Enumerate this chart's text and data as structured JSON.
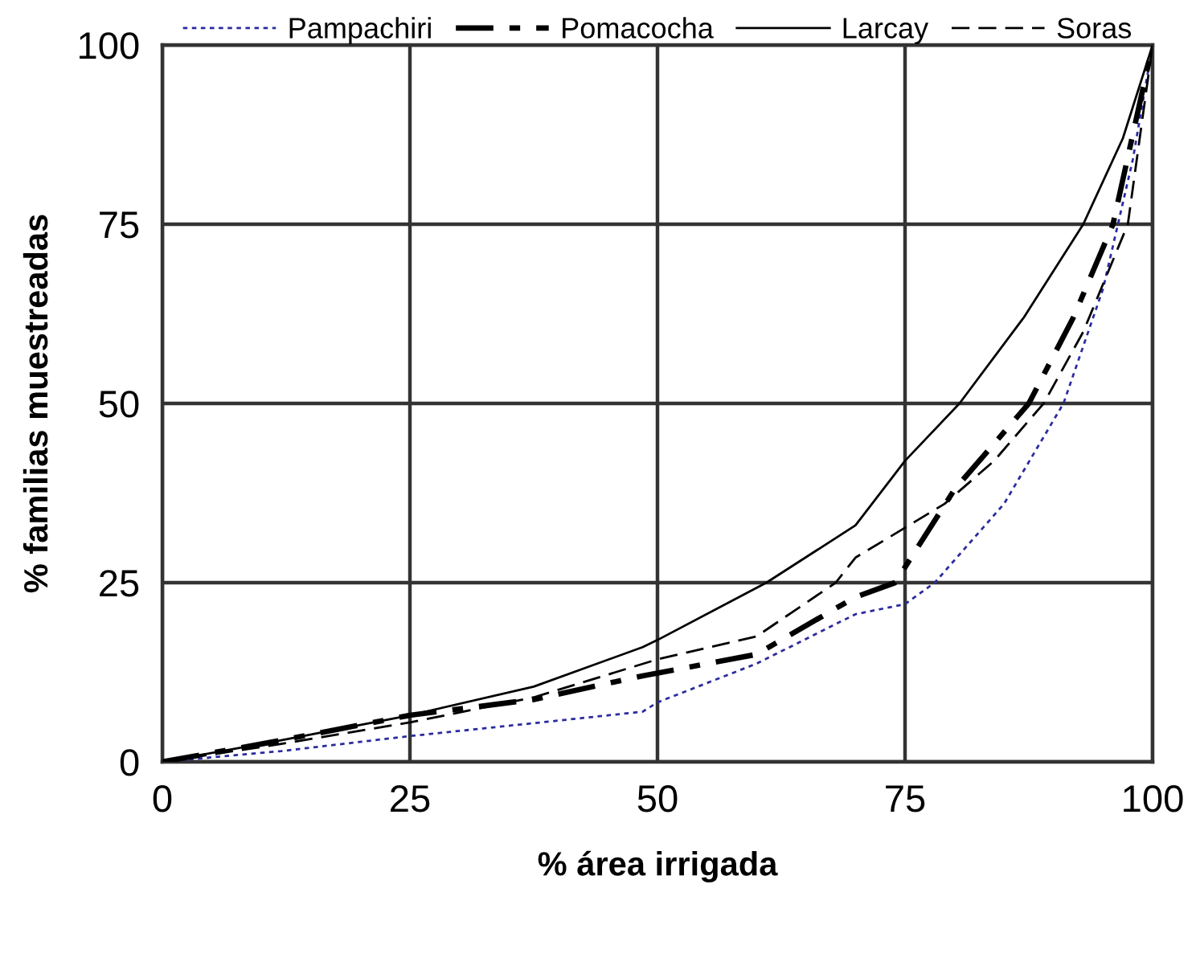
{
  "chart_data": {
    "type": "line",
    "xlabel": "% área irrigada",
    "ylabel": "% familias muestreadas",
    "xlim": [
      0,
      100
    ],
    "ylim": [
      0,
      100
    ],
    "xticks": [
      0,
      25,
      50,
      75,
      100
    ],
    "yticks": [
      0,
      25,
      50,
      75,
      100
    ],
    "grid": true,
    "legend": "top",
    "marker": "none",
    "series": [
      {
        "name": "Pampachiri",
        "color": "#2b2ba0",
        "line_style": "dotted",
        "x": [
          0,
          12,
          25,
          37.5,
          48.5,
          50,
          60,
          70,
          75,
          78,
          85,
          91,
          95,
          98,
          100
        ],
        "values": [
          0,
          1.5,
          3.6,
          5.4,
          7,
          8.3,
          13.7,
          20.6,
          22,
          25,
          36,
          50,
          66,
          84,
          100
        ]
      },
      {
        "name": "Pomacocha",
        "color": "#000000",
        "line_style": "dashdot",
        "x": [
          0,
          12,
          25,
          37.5,
          48.5,
          60,
          70,
          74,
          80,
          87.5,
          92,
          96,
          100
        ],
        "values": [
          0,
          3,
          6.5,
          8.7,
          12,
          15,
          23,
          25,
          38,
          50,
          62,
          75,
          100
        ]
      },
      {
        "name": "Larcay",
        "color": "#000000",
        "line_style": "solid",
        "x": [
          0,
          12,
          25,
          37.5,
          48.5,
          50,
          61,
          70,
          75,
          80.5,
          87,
          93,
          97,
          100
        ],
        "values": [
          0,
          3,
          6.5,
          10.5,
          16,
          17,
          25,
          33,
          42,
          50,
          62,
          75,
          87,
          100
        ]
      },
      {
        "name": "Soras",
        "color": "#000000",
        "line_style": "dashed",
        "x": [
          0,
          12,
          25,
          37.5,
          50,
          60,
          68,
          70,
          79,
          84,
          89,
          93,
          97.5,
          100
        ],
        "values": [
          0,
          2.5,
          5.5,
          9,
          14.3,
          17.5,
          25,
          28.5,
          36,
          42,
          50,
          60,
          75,
          100
        ]
      }
    ]
  }
}
